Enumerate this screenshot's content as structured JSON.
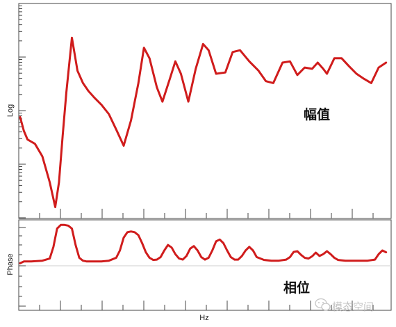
{
  "chart_data": [
    {
      "type": "line",
      "ylabel": "Log",
      "xlabel": "",
      "yscale": "log",
      "annotation": "幅值",
      "grid": false,
      "color": "#d01c1c",
      "ylim": [
        -1.1,
        2.3
      ],
      "xlim": [
        0,
        100
      ],
      "series": [
        {
          "x": [
            0,
            1,
            2,
            4,
            6,
            8,
            9.5,
            10.5,
            11.5,
            12.5,
            14,
            15.5,
            17,
            18.5,
            20,
            22,
            24,
            26,
            28,
            30,
            32,
            33.5,
            35,
            37,
            38.5,
            40.5,
            42,
            43.5,
            45.5,
            47.5,
            49.5,
            51,
            53,
            55.5,
            57.5,
            59.5,
            62,
            64.5,
            66.5,
            68.5,
            71,
            73,
            75,
            77,
            79,
            80.5,
            82,
            83,
            85,
            87,
            89,
            91,
            93,
            95,
            97,
            99
          ],
          "y": [
            0.5,
            0.28,
            0.14,
            0.07,
            -0.13,
            -0.55,
            -0.95,
            -0.55,
            0.2,
            0.9,
            1.78,
            1.25,
            1.05,
            0.92,
            0.82,
            0.7,
            0.55,
            0.3,
            0.04,
            0.45,
            1.05,
            1.62,
            1.45,
            0.98,
            0.75,
            1.12,
            1.4,
            1.2,
            0.75,
            1.28,
            1.68,
            1.58,
            1.2,
            1.22,
            1.55,
            1.58,
            1.4,
            1.25,
            1.08,
            1.05,
            1.38,
            1.4,
            1.18,
            1.3,
            1.28,
            1.38,
            1.28,
            1.2,
            1.45,
            1.45,
            1.32,
            1.2,
            1.12,
            1.05,
            1.3,
            1.38
          ]
        }
      ]
    },
    {
      "type": "line",
      "ylabel": "Phase",
      "xlabel": "Hz",
      "annotation": "相位",
      "grid": false,
      "color": "#d01c1c",
      "ylim": [
        -1.3,
        1.1
      ],
      "xlim": [
        0,
        100
      ],
      "series": [
        {
          "x": [
            0,
            1,
            3,
            6,
            8,
            9,
            10,
            11,
            12,
            13,
            14,
            15,
            16,
            17,
            18,
            20,
            22,
            24,
            26,
            27,
            28,
            29,
            30,
            31,
            32,
            33,
            34,
            35,
            36,
            37,
            38,
            39,
            40,
            41,
            42,
            43,
            44,
            45,
            46,
            47,
            48,
            49,
            50,
            51,
            52,
            53,
            54,
            55,
            56,
            57,
            58,
            59,
            60,
            61,
            62,
            63,
            64,
            66,
            68,
            70,
            72,
            73,
            74,
            75,
            76,
            77,
            78,
            79,
            80,
            81,
            82,
            83,
            84,
            85,
            86,
            88,
            90,
            92,
            94,
            96,
            97,
            98,
            99
          ],
          "y": [
            -0.05,
            0.0,
            0.0,
            0.02,
            0.08,
            0.4,
            0.9,
            1.0,
            1.0,
            0.98,
            0.9,
            0.45,
            0.1,
            0.02,
            0.0,
            0.0,
            0.0,
            0.02,
            0.1,
            0.3,
            0.65,
            0.8,
            0.82,
            0.8,
            0.72,
            0.5,
            0.25,
            0.1,
            0.04,
            0.05,
            0.12,
            0.3,
            0.45,
            0.38,
            0.2,
            0.08,
            0.05,
            0.15,
            0.35,
            0.42,
            0.3,
            0.12,
            0.05,
            0.1,
            0.3,
            0.55,
            0.6,
            0.5,
            0.3,
            0.12,
            0.05,
            0.05,
            0.15,
            0.3,
            0.4,
            0.3,
            0.12,
            0.04,
            0.02,
            0.02,
            0.05,
            0.12,
            0.26,
            0.28,
            0.18,
            0.1,
            0.08,
            0.14,
            0.24,
            0.15,
            0.2,
            0.28,
            0.2,
            0.1,
            0.04,
            0.02,
            0.02,
            0.02,
            0.02,
            0.05,
            0.2,
            0.3,
            0.25
          ]
        }
      ]
    }
  ],
  "watermark": {
    "text": "模态空间",
    "icon": "wechat-bubble-icon"
  }
}
